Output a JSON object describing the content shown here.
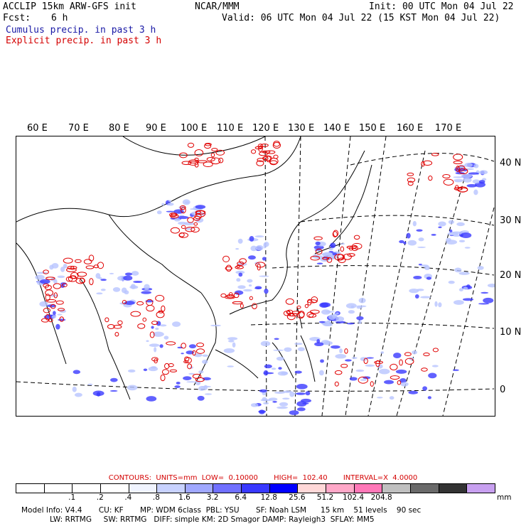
{
  "header": {
    "line1_left": "ACCLIP 15km ARW-GFS init",
    "line1_center": "NCAR/MMM",
    "line1_right": "Init: 00 UTC Mon 04 Jul 22",
    "fcst_label": "Fcst:",
    "fcst_value": "6 h",
    "valid": "Valid: 06 UTC Mon 04 Jul 22 (15 KST Mon 04 Jul 22)",
    "cumulus": "Cumulus precip. in past 3 h",
    "explicit": "Explicit precip. in past 3 h"
  },
  "map": {
    "lon_labels": [
      "60 E",
      "70 E",
      "80 E",
      "90 E",
      "100 E",
      "110 E",
      "120 E",
      "130 E",
      "140 E",
      "150 E",
      "160 E",
      "170 E"
    ],
    "lat_labels": [
      "40 N",
      "30 N",
      "20 N",
      "10 N",
      "0"
    ],
    "colors": {
      "cumulus": "#3a3aff",
      "explicit": "#e00000",
      "coast": "#000000"
    }
  },
  "contours": "CONTOURS:  UNITS=mm  LOW=  0.10000       HIGH=  102.40       INTERVAL=X  4.0000",
  "colorbar": {
    "colors": [
      "#ffffff",
      "#ffffff",
      "#ffffff",
      "#ffffff",
      "#f0f4ff",
      "#c8d2ff",
      "#a0a8ff",
      "#7070ff",
      "#3838ff",
      "#0000ff",
      "#ffd8d8",
      "#ffa8c8",
      "#ff78b8",
      "#c0c0c0",
      "#6a6a6a",
      "#333333",
      "#c8a0f0"
    ],
    "ticks": [
      ".1",
      ".2",
      ".4",
      ".8",
      "1.6",
      "3.2",
      "6.4",
      "12.8",
      "25.6",
      "51.2",
      "102.4",
      "204.8"
    ],
    "unit": "mm"
  },
  "model_info": {
    "line1": "Model Info: V4.4       CU: KF       MP: WDM 6class  PBL: YSU       SF: Noah LSM      15 km    51 levels    90 sec",
    "line2": "LW: RRTMG     SW: RRTMG   DIFF: simple KM: 2D Smagor DAMP: Rayleigh3  SFLAY: MM5"
  }
}
